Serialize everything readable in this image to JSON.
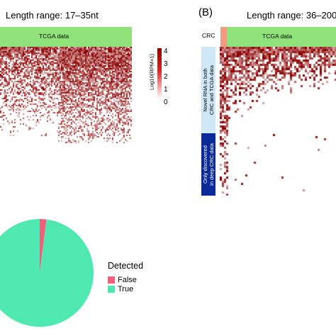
{
  "panel_a": {
    "title": "Length range: 17–35nt",
    "band_label": "TCGA data",
    "band_color": "#8fe27a",
    "colorbar": {
      "label": "Log10(RPM+1)",
      "ticks": [
        "4",
        "3",
        "2",
        "1",
        "0"
      ],
      "low_color": "#ffffff",
      "high_color": "#8b0000"
    }
  },
  "panel_b": {
    "letter": "B",
    "title": "Length range: 36–200",
    "crc_label": "CRC",
    "crc_color": "#f29b80",
    "band_label": "TCGA data",
    "band_color": "#8fe27a",
    "side_group_1": {
      "label_lines": [
        "Novel RNA in both",
        "CRC and TCGA data"
      ],
      "color": "#cfe8f8"
    },
    "side_group_2": {
      "label_lines": [
        "Only discovered",
        "in deep CRC data"
      ],
      "color": "#0b2a9a"
    }
  },
  "legend": {
    "title": "Detected",
    "items": [
      {
        "label": "False",
        "color": "#f0607a"
      },
      {
        "label": "True",
        "color": "#4ee8b0"
      }
    ]
  },
  "chart_data": [
    {
      "type": "heatmap",
      "title": "Length range: 17–35nt",
      "band": "TCGA data",
      "scale": {
        "label": "Log10(RPM+1)",
        "min": 0,
        "max": 4
      }
    },
    {
      "type": "heatmap",
      "title": "Length range: 36–200",
      "band": "TCGA data",
      "groups": [
        "Novel RNA in both CRC and TCGA data",
        "Only discovered in deep CRC data"
      ],
      "scale": {
        "label": "Log10(RPM+1)",
        "min": 0,
        "max": 4
      }
    },
    {
      "type": "pie",
      "legend_title": "Detected",
      "categories": [
        "False",
        "True"
      ],
      "values": [
        2,
        98
      ],
      "colors": [
        "#f0607a",
        "#4ee8b0"
      ]
    }
  ]
}
